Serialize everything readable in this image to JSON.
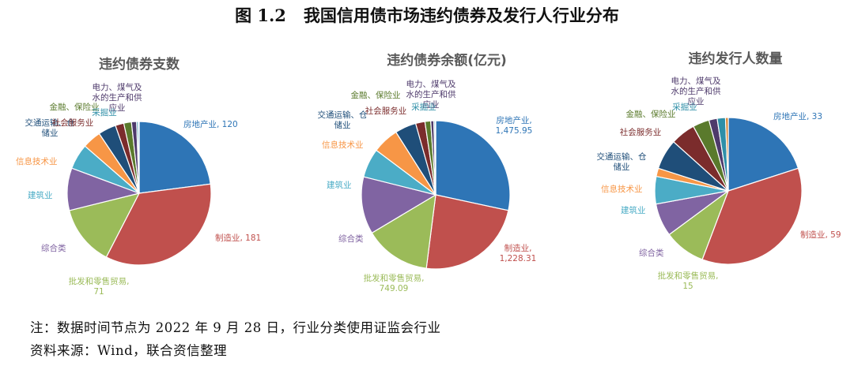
{
  "figure": {
    "number": "图 1.2",
    "title": "我国信用债市场违约债券及发行人行业分布"
  },
  "chart_data": [
    {
      "type": "pie",
      "title": "违约债券支数",
      "slices": [
        {
          "label": "房地产业",
          "value": 120,
          "value_text": "120",
          "color": "#2E75B6"
        },
        {
          "label": "制造业",
          "value": 181,
          "value_text": "181",
          "color": "#C0504D"
        },
        {
          "label": "批发和零售贸易",
          "value": 71,
          "value_text": "71",
          "color": "#9BBB59"
        },
        {
          "label": "综合类",
          "value": 50,
          "value_text": "",
          "color": "#8064A2"
        },
        {
          "label": "建筑业",
          "value": 30,
          "value_text": "",
          "color": "#4BACC6"
        },
        {
          "label": "信息技术业",
          "value": 22,
          "value_text": "",
          "color": "#F79646"
        },
        {
          "label": "交通运输、仓储业",
          "value": 21,
          "value_text": "",
          "color": "#1F4E79"
        },
        {
          "label": "社会服务业",
          "value": 10,
          "value_text": "",
          "color": "#7B2C2C"
        },
        {
          "label": "金融、保险业",
          "value": 9,
          "value_text": "",
          "color": "#5A7A2C"
        },
        {
          "label": "电力、煤气及水的生产和供应业",
          "value": 6,
          "value_text": "",
          "color": "#4E3A6B"
        },
        {
          "label": "采掘业",
          "value": 2,
          "value_text": "",
          "color": "#2F8FA8"
        },
        {
          "label": "",
          "value": 1,
          "value_text": "",
          "color": "#D9822B"
        }
      ]
    },
    {
      "type": "pie",
      "title": "违约债券余额(亿元)",
      "slices": [
        {
          "label": "房地产业",
          "value": 1475.95,
          "value_text": "1,475.95",
          "color": "#2E75B6"
        },
        {
          "label": "制造业",
          "value": 1228.31,
          "value_text": "1,228.31",
          "color": "#C0504D"
        },
        {
          "label": "批发和零售贸易",
          "value": 749.09,
          "value_text": "749.09",
          "color": "#9BBB59"
        },
        {
          "label": "综合类",
          "value": 650,
          "value_text": "",
          "color": "#8064A2"
        },
        {
          "label": "建筑业",
          "value": 330,
          "value_text": "",
          "color": "#4BACC6"
        },
        {
          "label": "信息技术业",
          "value": 300,
          "value_text": "",
          "color": "#F79646"
        },
        {
          "label": "交通运输、仓储业",
          "value": 240,
          "value_text": "",
          "color": "#1F4E79"
        },
        {
          "label": "社会服务业",
          "value": 105,
          "value_text": "",
          "color": "#7B2C2C"
        },
        {
          "label": "金融、保险业",
          "value": 65,
          "value_text": "",
          "color": "#5A7A2C"
        },
        {
          "label": "电力、煤气及水的生产和供应业",
          "value": 35,
          "value_text": "",
          "color": "#4E3A6B"
        },
        {
          "label": "采掘业",
          "value": 15,
          "value_text": "",
          "color": "#2F8FA8"
        },
        {
          "label": "",
          "value": 6,
          "value_text": "",
          "color": "#D9822B"
        }
      ]
    },
    {
      "type": "pie",
      "title": "违约发行人数量",
      "slices": [
        {
          "label": "房地产业",
          "value": 33,
          "value_text": "33",
          "color": "#2E75B6"
        },
        {
          "label": "制造业",
          "value": 59,
          "value_text": "59",
          "color": "#C0504D"
        },
        {
          "label": "批发和零售贸易",
          "value": 15,
          "value_text": "15",
          "color": "#9BBB59"
        },
        {
          "label": "综合类",
          "value": 12,
          "value_text": "",
          "color": "#8064A2"
        },
        {
          "label": "建筑业",
          "value": 10,
          "value_text": "",
          "color": "#4BACC6"
        },
        {
          "label": "信息技术业",
          "value": 3,
          "value_text": "",
          "color": "#F79646"
        },
        {
          "label": "交通运输、仓储业",
          "value": 11,
          "value_text": "",
          "color": "#1F4E79"
        },
        {
          "label": "社会服务业",
          "value": 9,
          "value_text": "",
          "color": "#7B2C2C"
        },
        {
          "label": "金融、保险业",
          "value": 6,
          "value_text": "",
          "color": "#5A7A2C"
        },
        {
          "label": "电力、煤气及水的生产和供应业",
          "value": 3,
          "value_text": "",
          "color": "#4E3A6B"
        },
        {
          "label": "采掘业",
          "value": 3,
          "value_text": "",
          "color": "#2F8FA8"
        },
        {
          "label": "",
          "value": 1,
          "value_text": "",
          "color": "#D9822B"
        }
      ]
    }
  ],
  "footer": {
    "note": "注：数据时间节点为 2022 年 9 月 28 日，行业分类使用证监会行业",
    "source": "资料来源：Wind，联合资信整理"
  }
}
